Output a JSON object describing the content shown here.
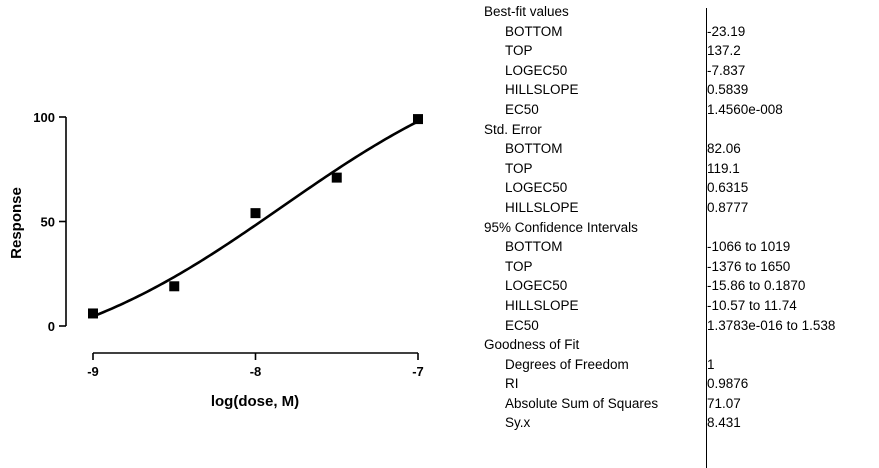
{
  "chart_data": {
    "type": "scatter",
    "title": "",
    "xlabel": "log(dose, M)",
    "ylabel": "Response",
    "xlim": [
      -9,
      -7
    ],
    "ylim": [
      0,
      100
    ],
    "x_ticks": [
      -9,
      -8,
      -7
    ],
    "y_ticks": [
      0,
      50,
      100
    ],
    "x_tick_labels": [
      "-9",
      "-8",
      "-7"
    ],
    "y_tick_labels": [
      "0",
      "50",
      "100"
    ],
    "grid": false,
    "series": [
      {
        "marker": "square",
        "x": [
          -9.0,
          -8.5,
          -8.0,
          -7.5,
          -7.0
        ],
        "y": [
          6,
          19,
          54,
          71,
          99
        ]
      }
    ],
    "fit_curve": {
      "model": "sigmoidal dose-response (variable slope)",
      "bottom": -23.19,
      "top": 137.2,
      "logec50": -7.837,
      "hillslope": 0.5839
    }
  },
  "results": [
    {
      "type": "header",
      "label": "Best-fit values",
      "value": ""
    },
    {
      "type": "item",
      "label": "BOTTOM",
      "value": "-23.19"
    },
    {
      "type": "item",
      "label": "TOP",
      "value": "137.2"
    },
    {
      "type": "item",
      "label": "LOGEC50",
      "value": "-7.837"
    },
    {
      "type": "item",
      "label": "HILLSLOPE",
      "value": "0.5839"
    },
    {
      "type": "item",
      "label": "EC50",
      "value": "1.4560e-008"
    },
    {
      "type": "header",
      "label": "Std. Error",
      "value": ""
    },
    {
      "type": "item",
      "label": "BOTTOM",
      "value": "82.06"
    },
    {
      "type": "item",
      "label": "TOP",
      "value": "119.1"
    },
    {
      "type": "item",
      "label": "LOGEC50",
      "value": "0.6315"
    },
    {
      "type": "item",
      "label": "HILLSLOPE",
      "value": "0.8777"
    },
    {
      "type": "header",
      "label": "95% Confidence Intervals",
      "value": ""
    },
    {
      "type": "item",
      "label": "BOTTOM",
      "value": "-1066 to 1019"
    },
    {
      "type": "item",
      "label": "TOP",
      "value": "-1376 to 1650"
    },
    {
      "type": "item",
      "label": "LOGEC50",
      "value": "-15.86 to 0.1870"
    },
    {
      "type": "item",
      "label": "HILLSLOPE",
      "value": "-10.57 to 11.74"
    },
    {
      "type": "item",
      "label": "EC50",
      "value": "1.3783e-016 to 1.538"
    },
    {
      "type": "header",
      "label": "Goodness of Fit",
      "value": ""
    },
    {
      "type": "item",
      "label": "Degrees of Freedom",
      "value": "1"
    },
    {
      "type": "item",
      "label": "RI",
      "value": "0.9876"
    },
    {
      "type": "item",
      "label": "Absolute Sum of Squares",
      "value": "71.07"
    },
    {
      "type": "item",
      "label": "Sy.x",
      "value": "8.431"
    }
  ]
}
